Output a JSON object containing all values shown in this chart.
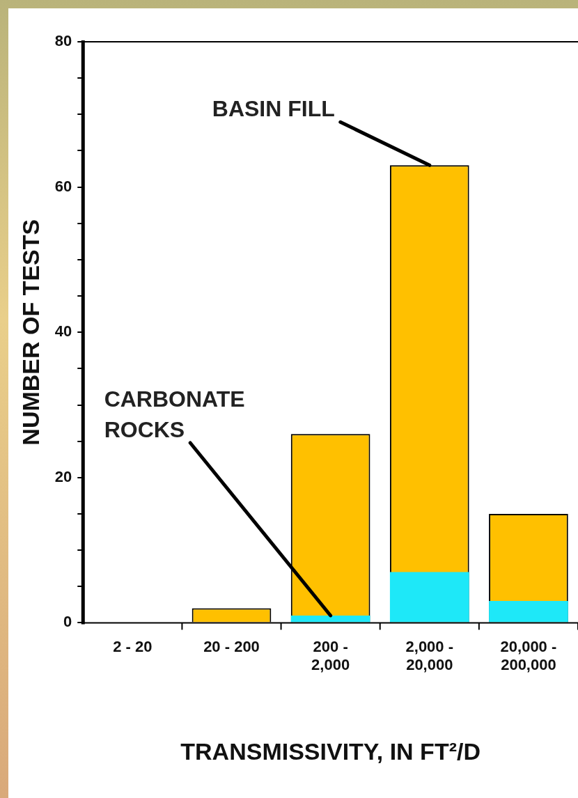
{
  "chart_data": {
    "type": "bar",
    "xlabel": "TRANSMISSIVITY, IN FT²/D",
    "ylabel": "NUMBER OF TESTS",
    "categories": [
      "2 - 20",
      "20 - 200",
      "200 - 2,000",
      "2,000 - 20,000",
      "20,000 - 200,000"
    ],
    "series": [
      {
        "color": "#ffc000",
        "values": [
          0,
          2,
          26,
          63,
          15
        ]
      },
      {
        "color": "#1ee8f8",
        "values": [
          0,
          0,
          1,
          7,
          3
        ]
      }
    ],
    "ylim": [
      0,
      80
    ],
    "yticks": [
      0,
      {
        "value": 5,
        "label": null
      },
      {
        "value": 10,
        "label": null
      },
      {
        "value": 15,
        "label": null
      },
      20,
      {
        "value": 25,
        "label": null
      },
      {
        "value": 30,
        "label": null
      },
      {
        "value": 35,
        "label": null
      },
      40,
      {
        "value": 45,
        "label": null
      },
      {
        "value": 50,
        "label": null
      },
      {
        "value": 55,
        "label": null
      },
      60,
      {
        "value": 65,
        "label": null
      },
      {
        "value": 70,
        "label": null
      },
      {
        "value": 75,
        "label": null
      },
      80
    ],
    "annotations": [
      {
        "text": "BASIN FILL",
        "x": "2,000 - 20,000",
        "y": 63
      },
      {
        "text": "CARBONATE ROCKS",
        "x": "200 - 2,000",
        "y": 1
      }
    ],
    "grid": false,
    "legend": false
  }
}
